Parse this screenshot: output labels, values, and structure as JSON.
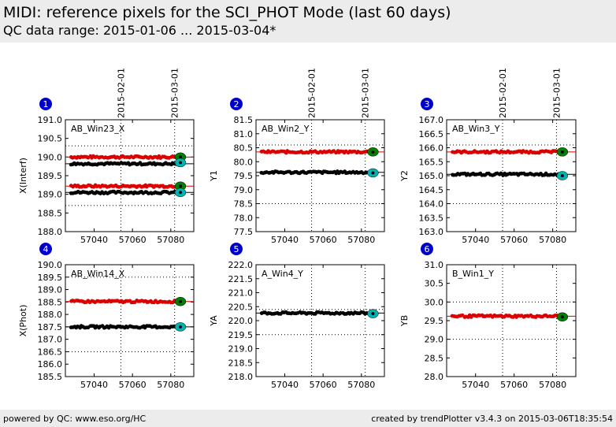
{
  "header": {
    "title": "MIDI: reference pixels for the SCI_PHOT Mode (last 60 days)",
    "subtitle": "QC data range: 2015-01-06 ... 2015-03-04*"
  },
  "footer": {
    "left": "powered by QC: www.eso.org/HC",
    "right": "created by trendPlotter v3.4.3 on 2015-03-06T18:35:54"
  },
  "colors": {
    "series_red": "#dd0000",
    "series_black": "#000000",
    "marker_green": "#008000",
    "marker_cyan": "#00b3b3",
    "badge": "#0000cc"
  },
  "chart_data": [
    {
      "type": "scatter",
      "badge": "1",
      "label": "AB_Win23_X",
      "ylabel": "X(Interf)",
      "xlim": [
        57025,
        57092
      ],
      "ylim": [
        188.0,
        191.0
      ],
      "yticks": [
        "188.0",
        "188.5",
        "189.0",
        "189.5",
        "190.0",
        "190.5",
        "191.0"
      ],
      "xticks": [
        57040,
        57060,
        57080
      ],
      "date_ticks": [
        "2015-02-01",
        "2015-03-01"
      ],
      "date_lines": [
        57054,
        57082
      ],
      "dotted_hlines": [
        188.7,
        190.3
      ],
      "series": [
        {
          "color": "red",
          "level": 190.0,
          "x_start": 57028,
          "x_end": 57083
        },
        {
          "color": "black",
          "level": 189.82,
          "x_start": 57028,
          "x_end": 57083
        },
        {
          "color": "red",
          "level": 189.22,
          "x_start": 57028,
          "x_end": 57083
        },
        {
          "color": "black",
          "level": 189.05,
          "x_start": 57028,
          "x_end": 57083
        }
      ],
      "last_points": [
        {
          "x": 57085,
          "y": 190.0,
          "color": "green"
        },
        {
          "x": 57085,
          "y": 189.85,
          "color": "cyan"
        },
        {
          "x": 57085,
          "y": 189.22,
          "color": "green"
        },
        {
          "x": 57085,
          "y": 189.05,
          "color": "cyan"
        }
      ]
    },
    {
      "type": "scatter",
      "badge": "2",
      "label": "AB_Win2_Y",
      "ylabel": "Y1",
      "xlim": [
        57025,
        57092
      ],
      "ylim": [
        77.5,
        81.5
      ],
      "yticks": [
        "77.5",
        "78.0",
        "78.5",
        "79.0",
        "79.5",
        "80.0",
        "80.5",
        "81.0",
        "81.5"
      ],
      "xticks": [
        57040,
        57060,
        57080
      ],
      "date_ticks": [
        "2015-02-01",
        "2015-03-01"
      ],
      "date_lines": [
        57054,
        57082
      ],
      "dotted_hlines": [
        78.5,
        80.6
      ],
      "series": [
        {
          "color": "red",
          "level": 80.35,
          "x_start": 57028,
          "x_end": 57083
        },
        {
          "color": "black",
          "level": 79.62,
          "x_start": 57028,
          "x_end": 57083
        }
      ],
      "last_points": [
        {
          "x": 57086,
          "y": 80.35,
          "color": "green"
        },
        {
          "x": 57086,
          "y": 79.6,
          "color": "cyan"
        }
      ]
    },
    {
      "type": "scatter",
      "badge": "3",
      "label": "AB_Win3_Y",
      "ylabel": "Y2",
      "xlim": [
        57025,
        57092
      ],
      "ylim": [
        163.0,
        167.0
      ],
      "yticks": [
        "163.0",
        "163.5",
        "164.0",
        "164.5",
        "165.0",
        "165.5",
        "166.0",
        "166.5",
        "167.0"
      ],
      "xticks": [
        57040,
        57060,
        57080
      ],
      "date_ticks": [
        "2015-02-01",
        "2015-03-01"
      ],
      "date_lines": [
        57054,
        57082
      ],
      "dotted_hlines": [
        164.0,
        166.1
      ],
      "series": [
        {
          "color": "red",
          "level": 165.85,
          "x_start": 57028,
          "x_end": 57083
        },
        {
          "color": "black",
          "level": 165.05,
          "x_start": 57028,
          "x_end": 57083
        }
      ],
      "last_points": [
        {
          "x": 57085,
          "y": 165.85,
          "color": "green"
        },
        {
          "x": 57085,
          "y": 165.0,
          "color": "cyan"
        }
      ]
    },
    {
      "type": "scatter",
      "badge": "4",
      "label": "AB_Win14_X",
      "ylabel": "X(Phot)",
      "xlim": [
        57025,
        57092
      ],
      "ylim": [
        185.5,
        190.0
      ],
      "yticks": [
        "185.5",
        "186.0",
        "186.5",
        "187.0",
        "187.5",
        "188.0",
        "188.5",
        "189.0",
        "189.5",
        "190.0"
      ],
      "xticks": [
        57040,
        57060,
        57080
      ],
      "date_ticks": [],
      "date_lines": [
        57054,
        57082
      ],
      "dotted_hlines": [
        186.5,
        189.5
      ],
      "series": [
        {
          "color": "red",
          "level": 188.52,
          "x_start": 57028,
          "x_end": 57083
        },
        {
          "color": "black",
          "level": 187.5,
          "x_start": 57028,
          "x_end": 57083
        }
      ],
      "last_points": [
        {
          "x": 57085,
          "y": 188.52,
          "color": "green"
        },
        {
          "x": 57085,
          "y": 187.5,
          "color": "cyan"
        }
      ]
    },
    {
      "type": "scatter",
      "badge": "5",
      "label": "A_Win4_Y",
      "ylabel": "YA",
      "xlim": [
        57025,
        57092
      ],
      "ylim": [
        218.0,
        222.0
      ],
      "yticks": [
        "218.0",
        "218.5",
        "219.0",
        "219.5",
        "220.0",
        "220.5",
        "221.0",
        "221.5",
        "222.0"
      ],
      "xticks": [
        57040,
        57060,
        57080
      ],
      "date_ticks": [],
      "date_lines": [
        57054,
        57082
      ],
      "dotted_hlines": [
        219.5,
        220.4
      ],
      "series": [
        {
          "color": "black",
          "level": 220.27,
          "x_start": 57028,
          "x_end": 57083
        }
      ],
      "last_points": [
        {
          "x": 57086,
          "y": 220.25,
          "color": "cyan"
        }
      ]
    },
    {
      "type": "scatter",
      "badge": "6",
      "label": "B_Win1_Y",
      "ylabel": "YB",
      "xlim": [
        57025,
        57092
      ],
      "ylim": [
        28.0,
        31.0
      ],
      "yticks": [
        "28.0",
        "28.5",
        "29.0",
        "29.5",
        "30.0",
        "30.5",
        "31.0"
      ],
      "xticks": [
        57040,
        57060,
        57080
      ],
      "date_ticks": [],
      "date_lines": [
        57054,
        57082
      ],
      "dotted_hlines": [
        29.0,
        30.0
      ],
      "series": [
        {
          "color": "red",
          "level": 29.62,
          "x_start": 57028,
          "x_end": 57083
        }
      ],
      "last_points": [
        {
          "x": 57085,
          "y": 29.6,
          "color": "green"
        }
      ]
    }
  ]
}
